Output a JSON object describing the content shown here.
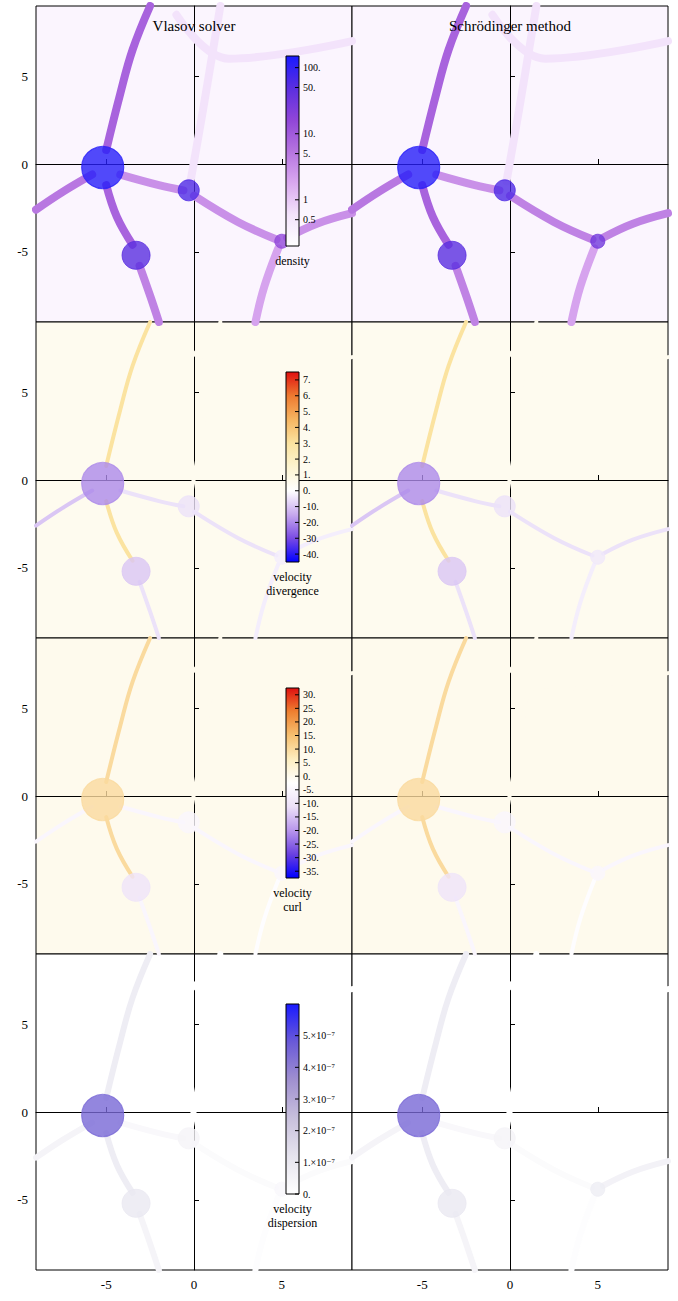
{
  "chart_data": {
    "type": "heatmap",
    "columns": [
      "Vlasov solver",
      "Schrödinger method"
    ],
    "xlim": [
      -9,
      9
    ],
    "ylim": [
      -9,
      9
    ],
    "xticks": [
      -5,
      0,
      5
    ],
    "yticks": [
      -5,
      0,
      5
    ],
    "halos": [
      {
        "x": -5.2,
        "y": -0.2,
        "r": 1.2
      },
      {
        "x": -0.3,
        "y": -1.5,
        "r": 0.6
      },
      {
        "x": -3.3,
        "y": -5.2,
        "r": 0.8
      },
      {
        "x": 5.0,
        "y": -4.4,
        "r": 0.4
      }
    ],
    "filaments": [
      {
        "points": [
          [
            -9,
            -2.6
          ],
          [
            -7.5,
            -1.6
          ],
          [
            -5.8,
            -0.6
          ]
        ]
      },
      {
        "points": [
          [
            -5,
            0.8
          ],
          [
            -4.2,
            4
          ],
          [
            -3.5,
            6.5
          ],
          [
            -2.5,
            9
          ]
        ]
      },
      {
        "points": [
          [
            -5,
            -1.2
          ],
          [
            -4.4,
            -3
          ],
          [
            -3.5,
            -4.6
          ]
        ]
      },
      {
        "points": [
          [
            -3.1,
            -5.8
          ],
          [
            -2.5,
            -7.5
          ],
          [
            -2,
            -9
          ]
        ]
      },
      {
        "points": [
          [
            -4.2,
            -0.6
          ],
          [
            -2,
            -1.2
          ],
          [
            -0.6,
            -1.5
          ]
        ]
      },
      {
        "points": [
          [
            0,
            -1.8
          ],
          [
            2.5,
            -3.3
          ],
          [
            4.7,
            -4.3
          ]
        ]
      },
      {
        "points": [
          [
            5.3,
            -4.2
          ],
          [
            7,
            -3.4
          ],
          [
            9,
            -2.8
          ]
        ]
      },
      {
        "points": [
          [
            4.8,
            -4.8
          ],
          [
            4,
            -7
          ],
          [
            3.5,
            -9
          ]
        ]
      },
      {
        "points": [
          [
            -1,
            8.5
          ],
          [
            2,
            6
          ],
          [
            9,
            7
          ]
        ]
      },
      {
        "points": [
          [
            -0.2,
            -1
          ],
          [
            0.5,
            3
          ],
          [
            1.5,
            9
          ]
        ]
      }
    ],
    "fields": [
      {
        "label": "density",
        "log": true,
        "colorbar": {
          "range": [
            0.2,
            150
          ],
          "ticks": [
            {
              "value": 100,
              "label": "100."
            },
            {
              "value": 50,
              "label": "50."
            },
            {
              "value": 10,
              "label": "10."
            },
            {
              "value": 5,
              "label": "5."
            },
            1,
            0.5
          ]
        },
        "colors": [
          "#ffffff",
          "#f3e3fb",
          "#d9a8ef",
          "#b573e0",
          "#8f45d8",
          "#5a2ee0",
          "#1a1aff"
        ],
        "background": 0.3,
        "halo_values": [
          [
            120,
            60,
            50,
            15
          ],
          [
            120,
            60,
            50,
            30
          ]
        ],
        "filament_values": [
          [
            5,
            8,
            8,
            4,
            3,
            3,
            3,
            2,
            0.6,
            0.6
          ],
          [
            5,
            8,
            8,
            4,
            3,
            4,
            4,
            2,
            0.6,
            0.6
          ]
        ]
      },
      {
        "label": "velocity divergence",
        "colorbar": {
          "range": [
            -45,
            7.5
          ],
          "ticks": [
            {
              "value": 7,
              "label": "7."
            },
            {
              "value": 6,
              "label": "6."
            },
            {
              "value": 5,
              "label": "5."
            },
            {
              "value": 4,
              "label": "4."
            },
            {
              "value": 3,
              "label": "3."
            },
            {
              "value": 2,
              "label": "2."
            },
            {
              "value": 1,
              "label": "1."
            },
            {
              "value": 0,
              "label": "0."
            },
            {
              "value": -10,
              "label": "-10."
            },
            {
              "value": -20,
              "label": "-20."
            },
            {
              "value": -30,
              "label": "-30."
            },
            {
              "value": -40,
              "label": "-40."
            }
          ]
        },
        "colors": [
          "#0000ff",
          "#7a4be3",
          "#c7a9ee",
          "#ffffff",
          "#fdf4d0",
          "#fbe3a0",
          "#f7b561",
          "#ee7a30",
          "#e01010"
        ],
        "background": 0.5,
        "halo_values": [
          [
            -20,
            -5,
            -10,
            -3
          ],
          [
            -20,
            -5,
            -10,
            -4
          ]
        ],
        "filament_values": [
          [
            -10,
            3,
            3,
            -5,
            -5,
            -5,
            -3,
            -3,
            0.5,
            0.5
          ],
          [
            -10,
            3,
            3,
            -5,
            -5,
            -5,
            -5,
            -3,
            0.5,
            0.5
          ]
        ]
      },
      {
        "label": "velocity curl",
        "colorbar": {
          "range": [
            -37.5,
            32.5
          ],
          "ticks": [
            {
              "value": 30,
              "label": "30."
            },
            {
              "value": 25,
              "label": "25."
            },
            {
              "value": 20,
              "label": "20."
            },
            {
              "value": 15,
              "label": "15."
            },
            {
              "value": 10,
              "label": "10."
            },
            {
              "value": 5,
              "label": "5."
            },
            {
              "value": 0,
              "label": "0."
            },
            {
              "value": -5,
              "label": "-5."
            },
            {
              "value": -10,
              "label": "-10."
            },
            {
              "value": -15,
              "label": "-15."
            },
            {
              "value": -20,
              "label": "-20."
            },
            {
              "value": -25,
              "label": "-25."
            },
            {
              "value": -30,
              "label": "-30."
            },
            {
              "value": -35,
              "label": "-35."
            }
          ]
        },
        "colors": [
          "#0000ff",
          "#6a40e0",
          "#b896ec",
          "#ece0f8",
          "#ffffff",
          "#fdeec0",
          "#f7c070",
          "#ee8030",
          "#e01010"
        ],
        "background": 0,
        "halo_values": [
          [
            10,
            -5,
            -10,
            -5
          ],
          [
            10,
            -5,
            -10,
            -5
          ]
        ],
        "filament_values": [
          [
            -5,
            10,
            10,
            -5,
            -5,
            -5,
            -5,
            -3,
            0,
            0
          ],
          [
            -5,
            10,
            10,
            -5,
            -5,
            -5,
            -5,
            -3,
            0,
            0
          ]
        ]
      },
      {
        "label": "velocity dispersion",
        "colorbar": {
          "range": [
            0,
            6e-07
          ],
          "ticks": [
            {
              "value": 5e-07,
              "label": "5.×10⁻⁷"
            },
            {
              "value": 4e-07,
              "label": "4.×10⁻⁷"
            },
            {
              "value": 3e-07,
              "label": "3.×10⁻⁷"
            },
            {
              "value": 2e-07,
              "label": "2.×10⁻⁷"
            },
            {
              "value": 1e-07,
              "label": "1.×10⁻⁷"
            },
            {
              "value": 0,
              "label": "0."
            }
          ]
        },
        "colors": [
          "#ffffff",
          "#e6e4ee",
          "#c8c0dc",
          "#a090d0",
          "#6a5ad8",
          "#1a1aff"
        ],
        "background": 0,
        "halo_values": [
          [
            4.5e-07,
            5e-08,
            1e-07,
            3e-08
          ],
          [
            4.5e-07,
            5e-08,
            1e-07,
            8e-08
          ]
        ],
        "filament_values": [
          [
            5e-08,
            8e-08,
            8e-08,
            5e-08,
            3e-08,
            2e-08,
            2e-08,
            1e-08,
            0,
            0
          ],
          [
            5e-08,
            8e-08,
            8e-08,
            5e-08,
            3e-08,
            2e-08,
            6e-08,
            1e-08,
            0,
            0
          ]
        ]
      }
    ]
  }
}
